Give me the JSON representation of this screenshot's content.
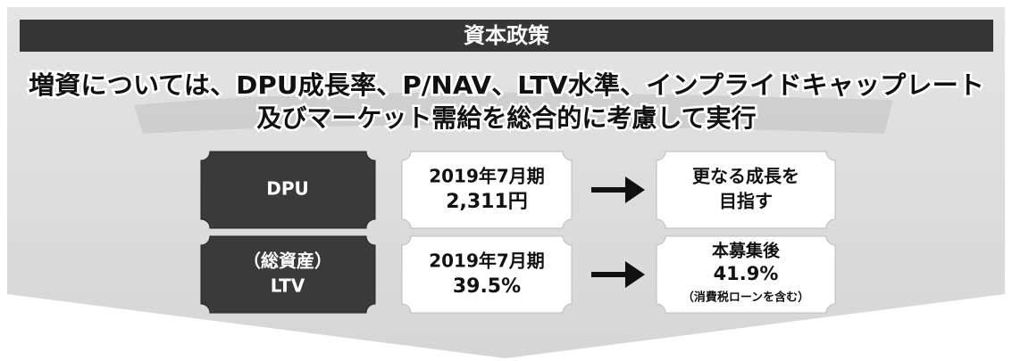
{
  "header": {
    "title": "資本政策"
  },
  "headline": {
    "lines": [
      "増資については、DPU成長率、P/NAV、LTV水準、インプライドキャップレート",
      "及びマーケット需給を総合的に考慮して実行"
    ]
  },
  "rows": [
    {
      "label": [
        "DPU"
      ],
      "current": [
        "2019年7月期",
        "2,311円"
      ],
      "target": [
        "更なる成長を",
        "目指す"
      ]
    },
    {
      "label": [
        "（総資産）",
        "LTV"
      ],
      "current": [
        "2019年7月期",
        "39.5%"
      ],
      "target": [
        "本募集後",
        "41.9%",
        "（消費税ローンを含む）"
      ]
    }
  ]
}
